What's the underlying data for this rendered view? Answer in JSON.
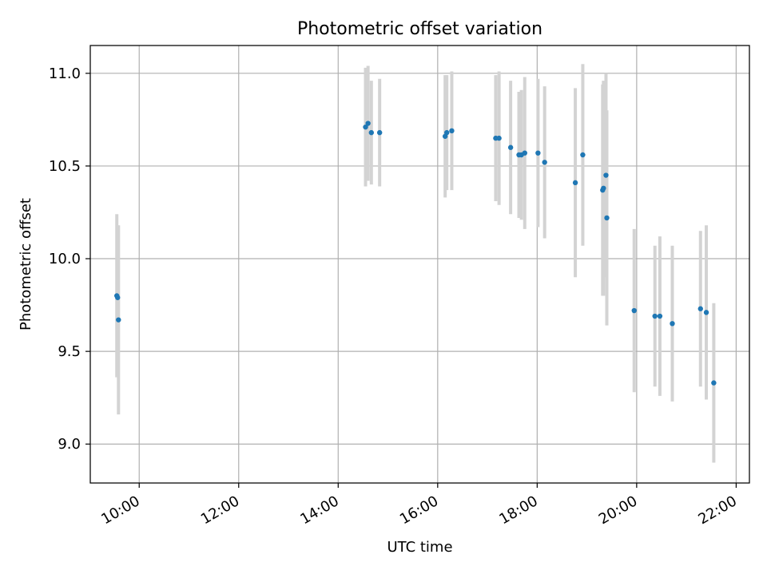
{
  "chart_data": {
    "type": "scatter",
    "title": "Photometric offset variation",
    "xlabel": "UTC time",
    "ylabel": "Photometric offset",
    "x_axis_type": "time",
    "xlim": [
      "09:01",
      "22:16"
    ],
    "ylim": [
      8.79,
      11.15
    ],
    "grid": true,
    "legend": "none",
    "x_ticks": [
      "10:00",
      "12:00",
      "14:00",
      "16:00",
      "18:00",
      "20:00",
      "22:00"
    ],
    "y_ticks": [
      "9.0",
      "9.5",
      "10.0",
      "10.5",
      "11.0"
    ],
    "colors": {
      "points": "#1f77b4",
      "errorbars": "#d3d3d3",
      "grid": "#b0b0b0",
      "axes": "#000000"
    },
    "series": [
      {
        "points": [
          {
            "x": "09:33",
            "y": 9.8,
            "yerr": 0.44
          },
          {
            "x": "09:34",
            "y": 9.79,
            "yerr": 0.39
          },
          {
            "x": "09:35",
            "y": 9.67,
            "yerr": 0.51
          },
          {
            "x": "14:33",
            "y": 10.71,
            "yerr": 0.32
          },
          {
            "x": "14:36",
            "y": 10.73,
            "yerr": 0.31
          },
          {
            "x": "14:40",
            "y": 10.68,
            "yerr": 0.28
          },
          {
            "x": "14:50",
            "y": 10.68,
            "yerr": 0.29
          },
          {
            "x": "16:09",
            "y": 10.66,
            "yerr": 0.33
          },
          {
            "x": "16:11",
            "y": 10.68,
            "yerr": 0.31
          },
          {
            "x": "16:17",
            "y": 10.69,
            "yerr": 0.32
          },
          {
            "x": "17:10",
            "y": 10.65,
            "yerr": 0.34
          },
          {
            "x": "17:14",
            "y": 10.65,
            "yerr": 0.36
          },
          {
            "x": "17:28",
            "y": 10.6,
            "yerr": 0.36
          },
          {
            "x": "17:38",
            "y": 10.56,
            "yerr": 0.34
          },
          {
            "x": "17:41",
            "y": 10.56,
            "yerr": 0.35
          },
          {
            "x": "17:45",
            "y": 10.57,
            "yerr": 0.41
          },
          {
            "x": "18:01",
            "y": 10.57,
            "yerr": 0.4
          },
          {
            "x": "18:09",
            "y": 10.52,
            "yerr": 0.41
          },
          {
            "x": "18:46",
            "y": 10.41,
            "yerr": 0.51
          },
          {
            "x": "18:55",
            "y": 10.56,
            "yerr": 0.49
          },
          {
            "x": "19:19",
            "y": 10.37,
            "yerr": 0.57
          },
          {
            "x": "19:20",
            "y": 10.38,
            "yerr": 0.58
          },
          {
            "x": "19:23",
            "y": 10.45,
            "yerr": 0.55
          },
          {
            "x": "19:24",
            "y": 10.22,
            "yerr": 0.58
          },
          {
            "x": "19:57",
            "y": 9.72,
            "yerr": 0.44
          },
          {
            "x": "20:22",
            "y": 9.69,
            "yerr": 0.38
          },
          {
            "x": "20:28",
            "y": 9.69,
            "yerr": 0.43
          },
          {
            "x": "20:43",
            "y": 9.65,
            "yerr": 0.42
          },
          {
            "x": "21:17",
            "y": 9.73,
            "yerr": 0.42
          },
          {
            "x": "21:24",
            "y": 9.71,
            "yerr": 0.47
          },
          {
            "x": "21:33",
            "y": 9.33,
            "yerr": 0.43
          }
        ]
      }
    ]
  }
}
